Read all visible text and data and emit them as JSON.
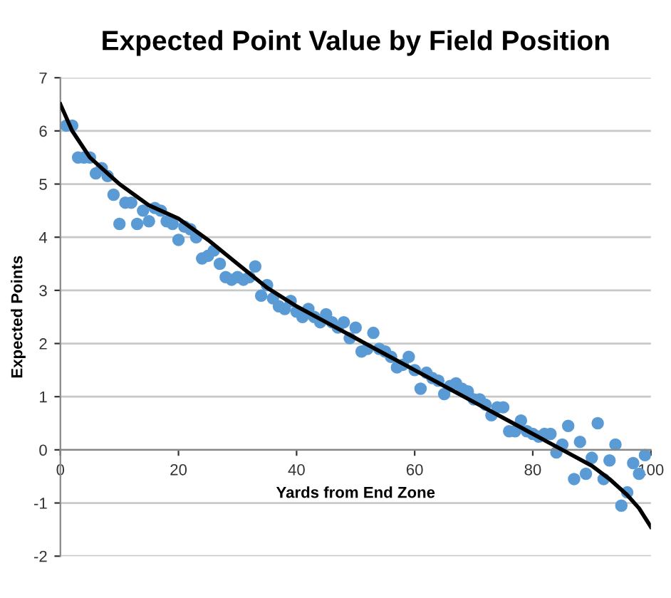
{
  "chart_data": {
    "type": "scatter",
    "title": "Expected Point Value by Field Position",
    "xlabel": "Yards from End Zone",
    "ylabel": "Expected Points",
    "xlim": [
      0,
      100
    ],
    "ylim": [
      -2,
      7
    ],
    "xticks": [
      0,
      20,
      40,
      60,
      80,
      100
    ],
    "yticks": [
      -2,
      -1,
      0,
      1,
      2,
      3,
      4,
      5,
      6,
      7
    ],
    "grid": "y",
    "legend": false,
    "marker": "circle",
    "series": [
      {
        "color": "#5b9bd5",
        "x": [
          1,
          2,
          3,
          4,
          5,
          6,
          7,
          8,
          9,
          10,
          11,
          12,
          13,
          14,
          15,
          16,
          17,
          18,
          19,
          20,
          21,
          22,
          23,
          24,
          25,
          26,
          27,
          28,
          29,
          30,
          31,
          32,
          33,
          34,
          35,
          36,
          37,
          38,
          39,
          40,
          41,
          42,
          43,
          44,
          45,
          46,
          47,
          48,
          49,
          50,
          51,
          52,
          53,
          54,
          55,
          56,
          57,
          58,
          59,
          60,
          61,
          62,
          63,
          64,
          65,
          66,
          67,
          68,
          69,
          70,
          71,
          72,
          73,
          74,
          75,
          76,
          77,
          78,
          79,
          80,
          81,
          82,
          83,
          84,
          85,
          86,
          87,
          88,
          89,
          90,
          91,
          92,
          93,
          94,
          95,
          96,
          97,
          98,
          99
        ],
        "values": [
          6.1,
          6.1,
          5.5,
          5.5,
          5.5,
          5.2,
          5.3,
          5.15,
          4.8,
          4.25,
          4.65,
          4.65,
          4.25,
          4.5,
          4.3,
          4.55,
          4.5,
          4.3,
          4.25,
          3.95,
          4.2,
          4.15,
          4.0,
          3.6,
          3.65,
          3.75,
          3.5,
          3.25,
          3.2,
          3.25,
          3.2,
          3.25,
          3.45,
          2.9,
          3.1,
          2.85,
          2.7,
          2.65,
          2.8,
          2.6,
          2.5,
          2.65,
          2.5,
          2.4,
          2.55,
          2.4,
          2.3,
          2.4,
          2.1,
          2.3,
          1.85,
          1.9,
          2.2,
          1.9,
          1.85,
          1.75,
          1.55,
          1.6,
          1.75,
          1.5,
          1.15,
          1.45,
          1.35,
          1.3,
          1.05,
          1.2,
          1.25,
          1.15,
          1.1,
          0.95,
          0.95,
          0.85,
          0.65,
          0.8,
          0.8,
          0.35,
          0.35,
          0.55,
          0.35,
          0.3,
          0.25,
          0.3,
          0.3,
          -0.05,
          0.1,
          0.45,
          -0.55,
          0.15,
          -0.45,
          -0.15,
          0.5,
          -0.55,
          -0.2,
          0.1,
          -1.05,
          -0.8,
          -0.25,
          -0.45,
          -0.1
        ]
      },
      {
        "type": "line",
        "color": "#000000",
        "marker": "none",
        "line_style": "solid",
        "x": [
          0,
          2,
          5,
          10,
          15,
          20,
          25,
          30,
          35,
          40,
          45,
          50,
          55,
          60,
          65,
          70,
          75,
          80,
          85,
          90,
          93,
          96,
          98,
          100
        ],
        "values": [
          6.5,
          6.0,
          5.5,
          5.0,
          4.6,
          4.35,
          3.95,
          3.5,
          3.05,
          2.7,
          2.4,
          2.1,
          1.8,
          1.5,
          1.2,
          0.9,
          0.6,
          0.3,
          0.0,
          -0.3,
          -0.55,
          -0.85,
          -1.1,
          -1.45
        ]
      }
    ]
  }
}
